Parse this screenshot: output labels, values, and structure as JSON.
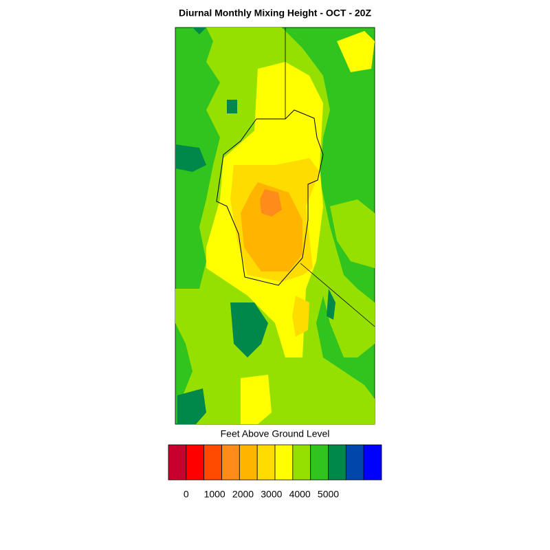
{
  "title": "Diurnal Monthly Mixing Height - OCT - 20Z",
  "colorbar": {
    "label": "Feet Above Ground Level",
    "ticks": [
      0,
      1000,
      2000,
      3000,
      4000,
      5000
    ],
    "colors": [
      "#c8002d",
      "#ff0000",
      "#ff4a00",
      "#ff8c1a",
      "#ffb400",
      "#ffdc00",
      "#ffff00",
      "#96e000",
      "#32c41e",
      "#00884a",
      "#0046aa",
      "#0000ff"
    ]
  }
}
